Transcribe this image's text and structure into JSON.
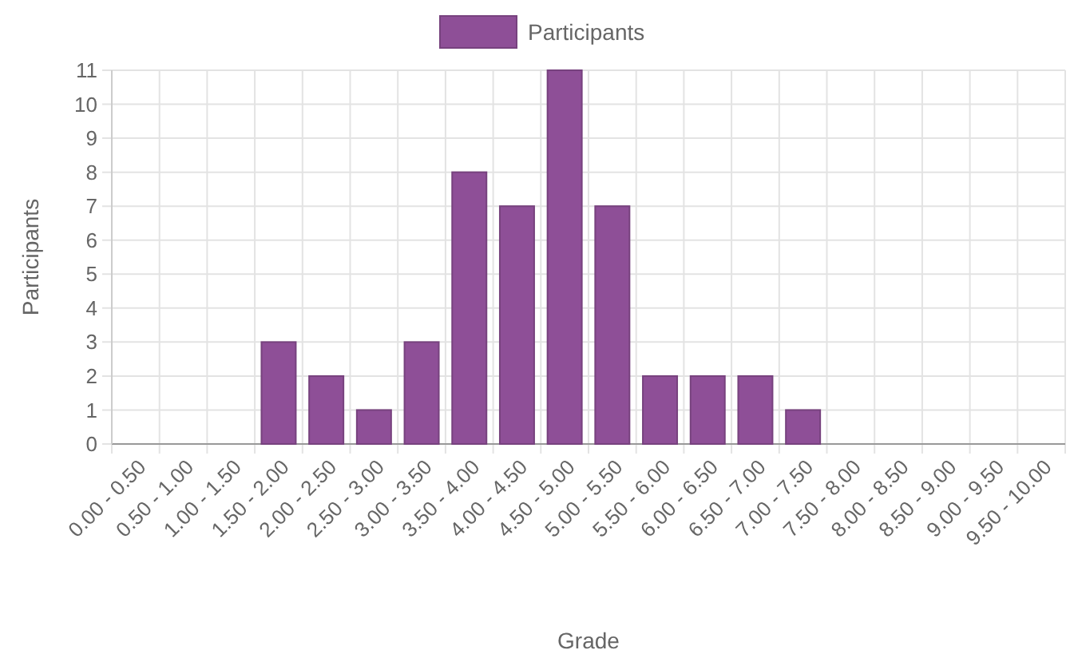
{
  "chart_data": {
    "type": "bar",
    "xlabel": "Grade",
    "ylabel": "Participants",
    "categories": [
      "0.00 - 0.50",
      "0.50 - 1.00",
      "1.00 - 1.50",
      "1.50 - 2.00",
      "2.00 - 2.50",
      "2.50 - 3.00",
      "3.00 - 3.50",
      "3.50 - 4.00",
      "4.00 - 4.50",
      "4.50 - 5.00",
      "5.00 - 5.50",
      "5.50 - 6.00",
      "6.00 - 6.50",
      "6.50 - 7.00",
      "7.00 - 7.50",
      "7.50 - 8.00",
      "8.00 - 8.50",
      "8.50 - 9.00",
      "9.00 - 9.50",
      "9.50 - 10.00"
    ],
    "series": [
      {
        "name": "Participants",
        "color": "#8e4f97",
        "values": [
          0,
          0,
          0,
          3,
          2,
          1,
          3,
          8,
          7,
          11,
          7,
          2,
          2,
          2,
          1,
          0,
          0,
          0,
          0,
          0
        ]
      }
    ],
    "ylim": [
      0,
      11
    ],
    "yticks": [
      0,
      1,
      2,
      3,
      4,
      5,
      6,
      7,
      8,
      9,
      10,
      11
    ],
    "grid": true,
    "legend": "top"
  }
}
